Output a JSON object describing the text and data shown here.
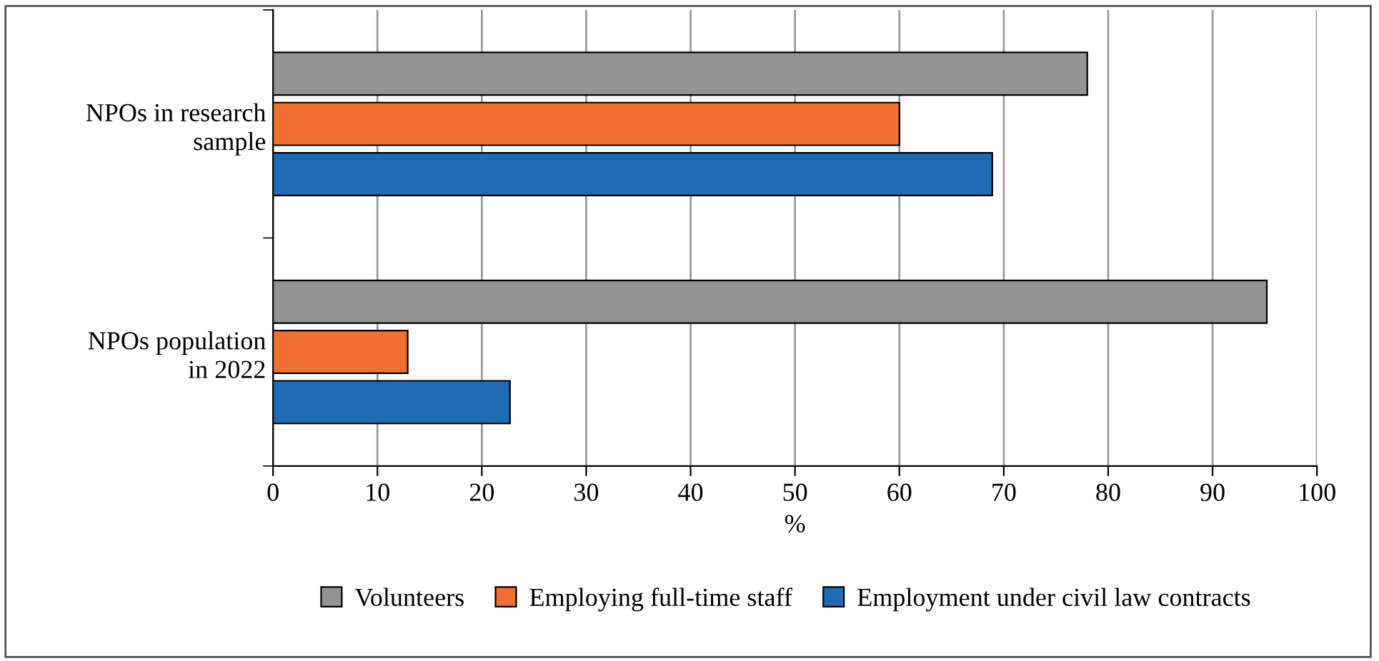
{
  "chart_data": {
    "type": "bar",
    "orientation": "horizontal",
    "xlabel": "%",
    "categories": [
      "NPOs in research\nsample",
      "NPOs population\nin 2022"
    ],
    "series": [
      {
        "name": "Volunteers",
        "color": "#939393",
        "values": [
          78,
          95.2
        ]
      },
      {
        "name": "Employing full-time staff",
        "color": "#f07032",
        "values": [
          60,
          12.9
        ]
      },
      {
        "name": "Employment under civil law contracts",
        "color": "#1f6bb5",
        "values": [
          68.9,
          22.7
        ]
      }
    ],
    "xlim": [
      0,
      100
    ],
    "xticks": [
      0,
      10,
      20,
      30,
      40,
      50,
      60,
      70,
      80,
      90,
      100
    ],
    "grid": "x",
    "legend": "bottom"
  }
}
